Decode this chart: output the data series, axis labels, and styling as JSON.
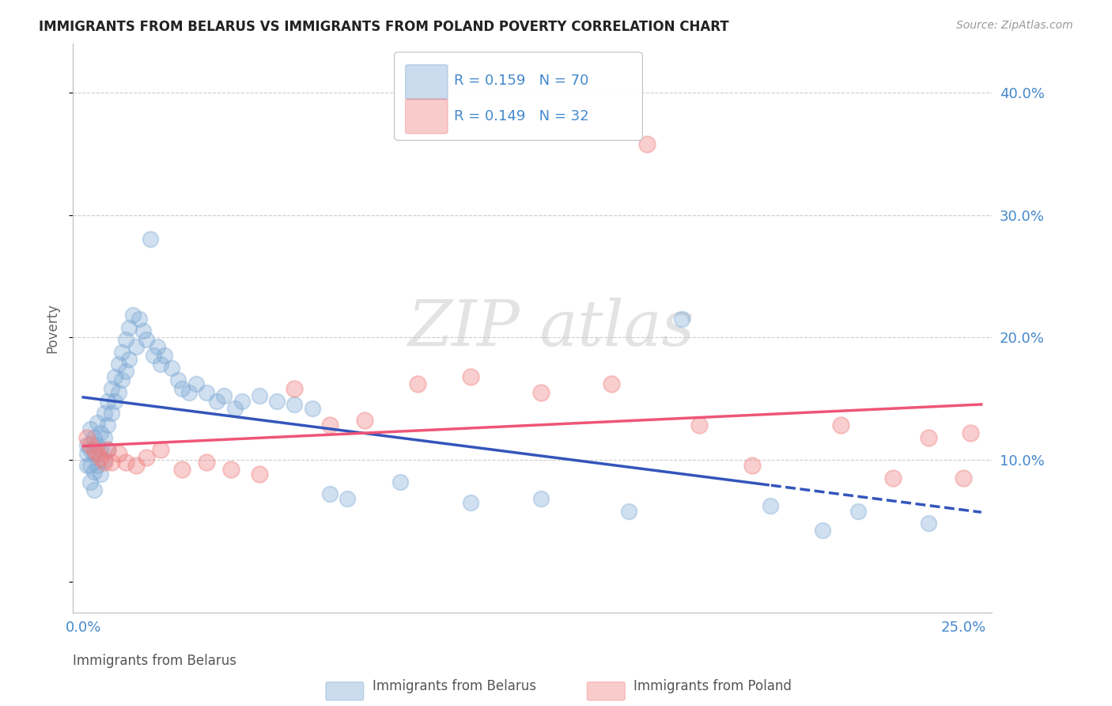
{
  "title": "IMMIGRANTS FROM BELARUS VS IMMIGRANTS FROM POLAND POVERTY CORRELATION CHART",
  "source": "Source: ZipAtlas.com",
  "ylabel": "Poverty",
  "color_belarus": "#7BA7D4",
  "color_poland": "#F08080",
  "color_trendline_belarus": "#3355BB",
  "color_trendline_poland": "#EE5577",
  "color_axis_labels": "#4488CC",
  "background_color": "#FFFFFF",
  "xlim": [
    -0.003,
    0.258
  ],
  "ylim": [
    -0.025,
    0.44
  ],
  "belarus_x": [
    0.001,
    0.001,
    0.001,
    0.002,
    0.002,
    0.002,
    0.002,
    0.003,
    0.003,
    0.003,
    0.003,
    0.004,
    0.004,
    0.004,
    0.005,
    0.005,
    0.005,
    0.006,
    0.006,
    0.006,
    0.007,
    0.007,
    0.007,
    0.008,
    0.008,
    0.009,
    0.009,
    0.01,
    0.01,
    0.011,
    0.011,
    0.012,
    0.012,
    0.013,
    0.013,
    0.014,
    0.015,
    0.016,
    0.017,
    0.018,
    0.019,
    0.02,
    0.021,
    0.022,
    0.023,
    0.025,
    0.027,
    0.028,
    0.03,
    0.032,
    0.035,
    0.038,
    0.04,
    0.043,
    0.045,
    0.05,
    0.055,
    0.06,
    0.065,
    0.07,
    0.075,
    0.09,
    0.11,
    0.13,
    0.155,
    0.17,
    0.195,
    0.21,
    0.22,
    0.24
  ],
  "belarus_y": [
    0.105,
    0.112,
    0.095,
    0.125,
    0.108,
    0.095,
    0.082,
    0.118,
    0.105,
    0.09,
    0.075,
    0.13,
    0.112,
    0.095,
    0.122,
    0.108,
    0.088,
    0.138,
    0.118,
    0.1,
    0.148,
    0.128,
    0.108,
    0.158,
    0.138,
    0.168,
    0.148,
    0.178,
    0.155,
    0.188,
    0.165,
    0.198,
    0.172,
    0.208,
    0.182,
    0.218,
    0.192,
    0.215,
    0.205,
    0.198,
    0.28,
    0.185,
    0.192,
    0.178,
    0.185,
    0.175,
    0.165,
    0.158,
    0.155,
    0.162,
    0.155,
    0.148,
    0.152,
    0.142,
    0.148,
    0.152,
    0.148,
    0.145,
    0.142,
    0.072,
    0.068,
    0.082,
    0.065,
    0.068,
    0.058,
    0.215,
    0.062,
    0.042,
    0.058,
    0.048
  ],
  "poland_x": [
    0.001,
    0.002,
    0.003,
    0.004,
    0.005,
    0.006,
    0.007,
    0.008,
    0.01,
    0.012,
    0.015,
    0.018,
    0.022,
    0.028,
    0.035,
    0.042,
    0.05,
    0.06,
    0.07,
    0.08,
    0.095,
    0.11,
    0.13,
    0.15,
    0.16,
    0.175,
    0.19,
    0.215,
    0.23,
    0.24,
    0.25,
    0.252
  ],
  "poland_y": [
    0.118,
    0.112,
    0.108,
    0.105,
    0.102,
    0.098,
    0.108,
    0.098,
    0.105,
    0.098,
    0.095,
    0.102,
    0.108,
    0.092,
    0.098,
    0.092,
    0.088,
    0.158,
    0.128,
    0.132,
    0.162,
    0.168,
    0.155,
    0.162,
    0.358,
    0.128,
    0.095,
    0.128,
    0.085,
    0.118,
    0.085,
    0.122
  ]
}
